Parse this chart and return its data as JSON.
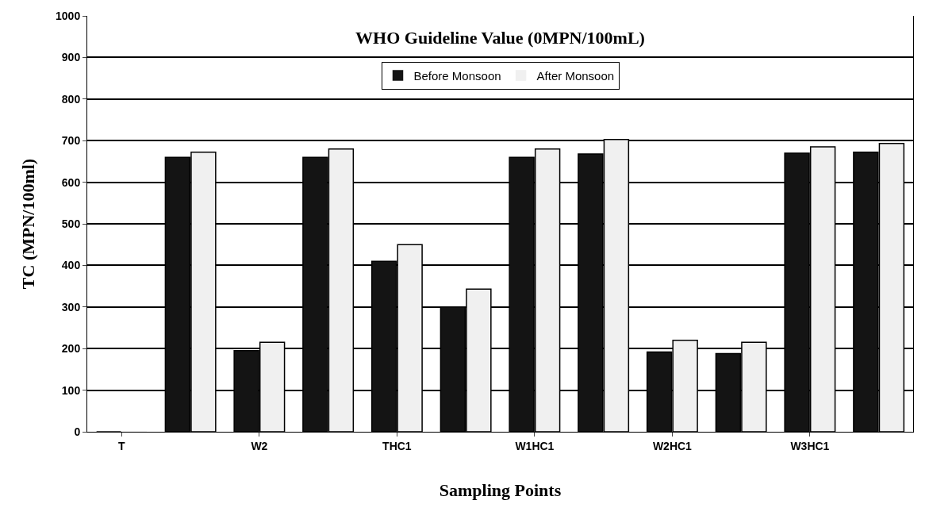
{
  "chart_data": {
    "type": "bar",
    "title": "WHO Guideline Value (0MPN/100mL)",
    "xlabel": "Sampling Points",
    "ylabel": "TC (MPN/100ml)",
    "categories": [
      "T",
      null,
      "W2",
      null,
      "THC1",
      null,
      "W1HC1",
      null,
      "W2HC1",
      null,
      "W3HC1",
      null
    ],
    "series": [
      {
        "name": "Before Monsoon",
        "color": "#141414",
        "values": [
          0,
          660,
          195,
          660,
          410,
          300,
          660,
          668,
          192,
          188,
          670,
          672
        ]
      },
      {
        "name": "After Monsoon",
        "color": "#f0f0f0",
        "values": [
          0,
          672,
          215,
          680,
          450,
          343,
          680,
          703,
          220,
          215,
          685,
          693
        ]
      }
    ],
    "ylim": [
      0,
      1000
    ],
    "yticks": [
      0,
      100,
      200,
      300,
      400,
      500,
      600,
      700,
      800,
      900,
      1000
    ],
    "grid": "y",
    "legend": "top"
  }
}
